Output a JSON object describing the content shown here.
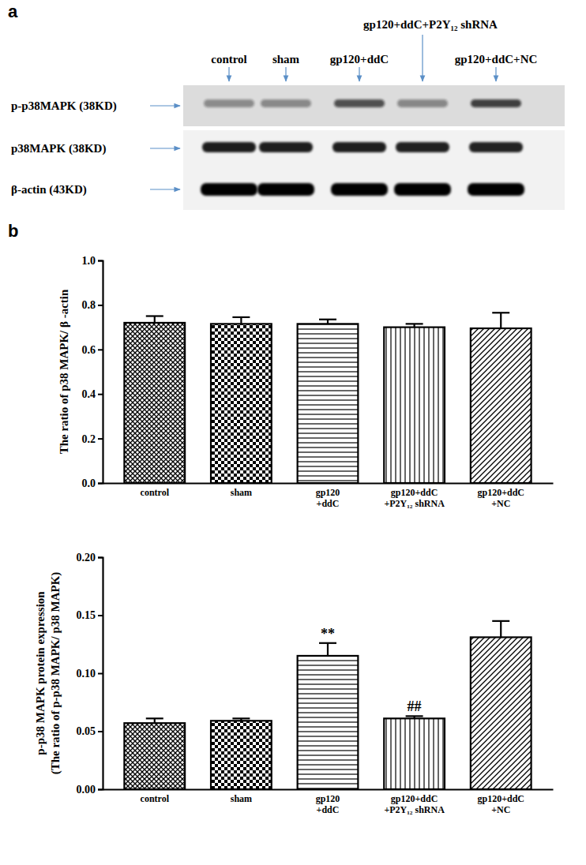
{
  "panel_labels": [
    "a",
    "b"
  ],
  "blot": {
    "group_label": "gp120+ddC+P2Y₁₂ shRNA",
    "lane_labels": [
      "control",
      "sham",
      "gp120+ddC",
      null,
      "gp120+ddC+NC"
    ],
    "rows": [
      "p-p38MAPK (38KD)",
      "p38MAPK (38KD)",
      "β-actin (43KD)"
    ]
  },
  "chart_data": [
    {
      "type": "bar",
      "ylabel": "The ratio of p38 MAPK/ β -actin",
      "categories": [
        "control",
        "sham",
        "gp120\n+ddC",
        "gp120+ddC\n+P2Y₁₂ shRNA",
        "gp120+ddC\n+NC"
      ],
      "values": [
        0.72,
        0.715,
        0.715,
        0.7,
        0.695
      ],
      "errors": [
        0.03,
        0.03,
        0.02,
        0.015,
        0.07
      ],
      "color": "#000000",
      "ylim": [
        0,
        1.0
      ],
      "yticks": [
        {
          "value": 0,
          "label": "0.0"
        },
        0.2,
        0.4,
        0.6,
        0.8,
        {
          "value": 1,
          "label": "1.0"
        }
      ]
    },
    {
      "type": "bar",
      "ylabel": "p-p38 MAPK protein expression\n(The ratio of p-p38 MAPK/ p38 MAPK)",
      "categories": [
        "control",
        "sham",
        "gp120\n+ddC",
        "gp120+ddC\n+P2Y₁₂ shRNA",
        "gp120+ddC\n+NC"
      ],
      "values": [
        0.057,
        0.059,
        0.115,
        0.061,
        0.131
      ],
      "errors": [
        0.004,
        0.002,
        0.011,
        0.002,
        0.014
      ],
      "annotations": [
        null,
        null,
        "**",
        "##",
        null
      ],
      "color": "#000000",
      "ylim": [
        0,
        0.2
      ],
      "yticks": [
        {
          "value": 0,
          "label": "0.00"
        },
        {
          "value": 0.05,
          "label": "0.05"
        },
        {
          "value": 0.1,
          "label": "0.10"
        },
        {
          "value": 0.15,
          "label": "0.15"
        },
        {
          "value": 0.2,
          "label": "0.20"
        }
      ]
    }
  ]
}
